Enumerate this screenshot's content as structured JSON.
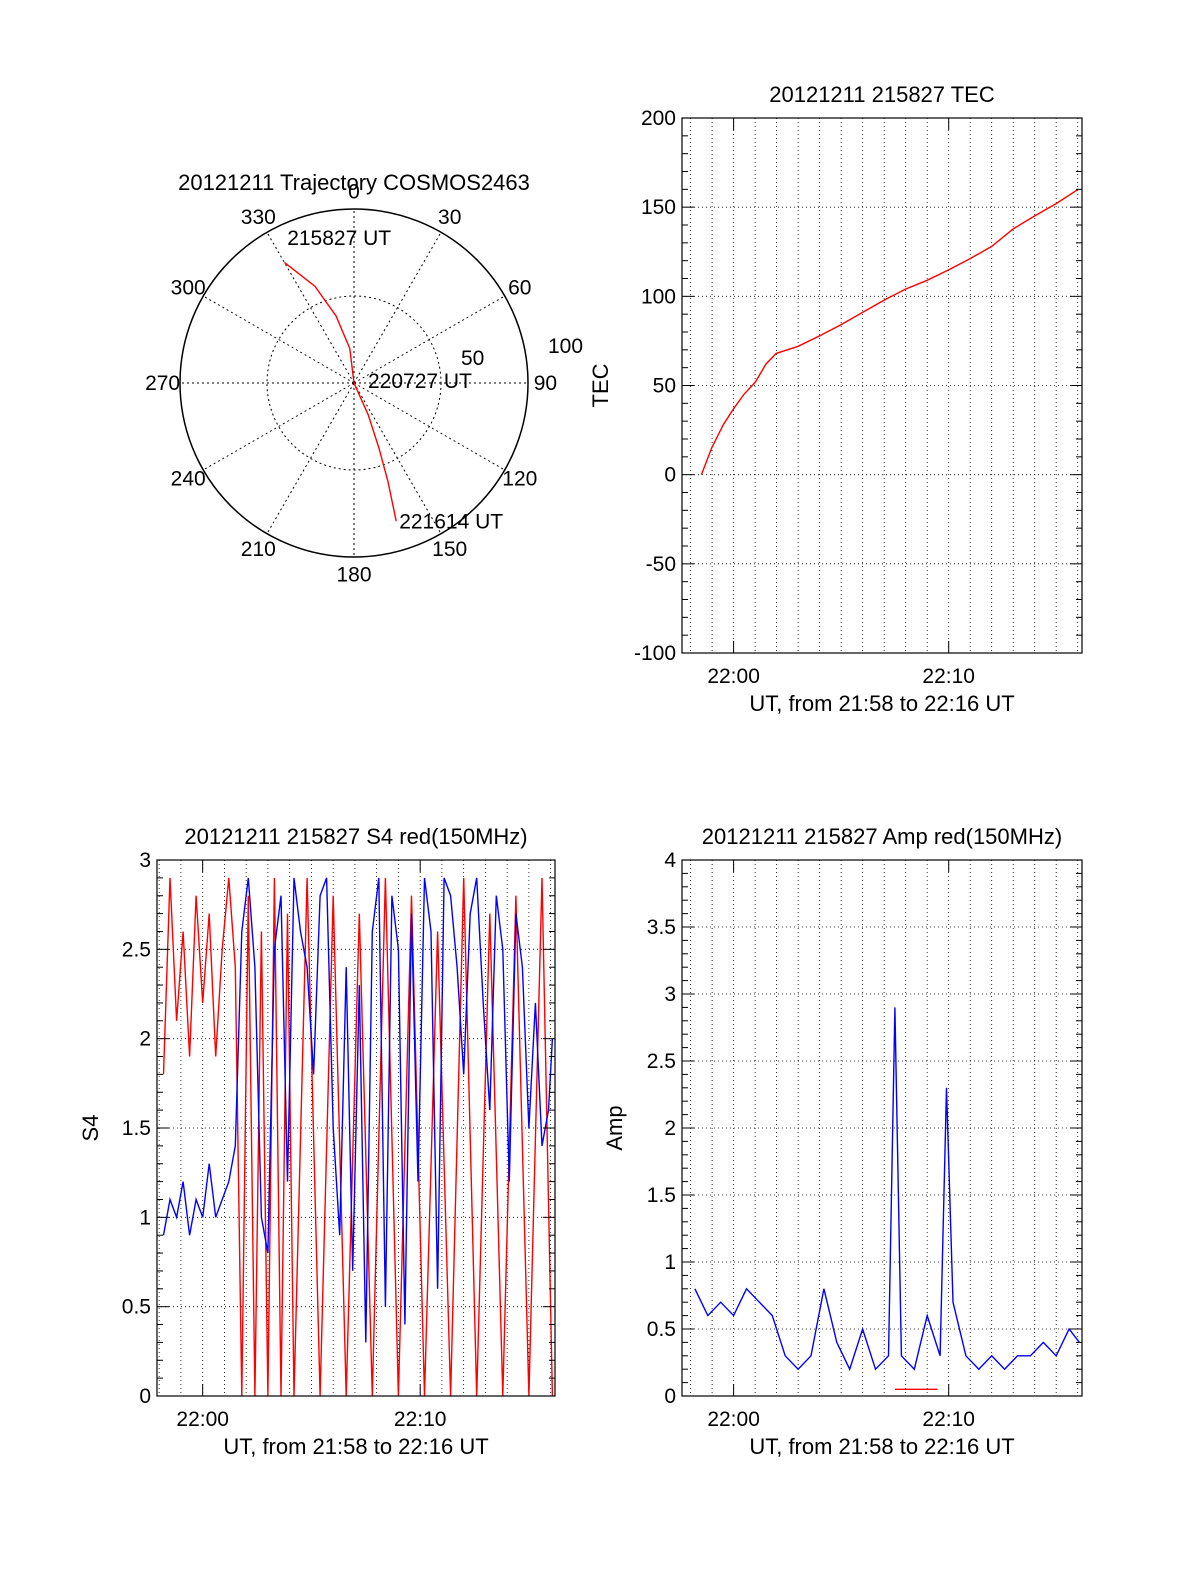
{
  "chart_data": [
    {
      "type": "polar",
      "title": "20121211 Trajectory COSMOS2463",
      "angle_ticks": [
        "0",
        "30",
        "60",
        "90",
        "120",
        "150",
        "180",
        "210",
        "240",
        "270",
        "300",
        "330"
      ],
      "radial_ticks": [
        "50",
        "100"
      ],
      "rmax": 100,
      "grid": true,
      "series": [
        {
          "color": "#ff0000",
          "points": [
            {
              "az": 330,
              "r": 80
            },
            {
              "az": 338,
              "r": 60
            },
            {
              "az": 345,
              "r": 40
            },
            {
              "az": 353,
              "r": 20
            },
            {
              "az": 150,
              "r": 0
            },
            {
              "az": 156,
              "r": 20
            },
            {
              "az": 159,
              "r": 40
            },
            {
              "az": 161,
              "r": 60
            },
            {
              "az": 163,
              "r": 83
            }
          ]
        }
      ],
      "annotations": [
        {
          "text": "215827 UT",
          "az": 335,
          "r": 80
        },
        {
          "text": "220727 UT",
          "az": 90,
          "r": 5
        },
        {
          "text": "221614 UT",
          "az": 163,
          "r": 85
        }
      ]
    },
    {
      "type": "line",
      "title": "20121211 215827 TEC",
      "ylabel": "TEC",
      "xlabel": "UT, from 21:58 to 22:16 UT",
      "xlim": [
        21.96,
        22.27
      ],
      "ylim": [
        -100,
        200
      ],
      "yticks": [
        -100,
        -50,
        0,
        50,
        100,
        150,
        200
      ],
      "xticks": [
        {
          "value": 22.0,
          "label": "22:00"
        },
        {
          "value": 22.1667,
          "label": "22:10"
        }
      ],
      "grid": true,
      "series": [
        {
          "color": "#ff0000",
          "x": [
            21.975,
            21.983,
            21.992,
            22.0,
            22.008,
            22.017,
            22.025,
            22.033,
            22.05,
            22.067,
            22.083,
            22.1,
            22.117,
            22.133,
            22.15,
            22.167,
            22.183,
            22.2,
            22.217,
            22.233,
            22.25,
            22.267
          ],
          "values": [
            0,
            15,
            28,
            37,
            45,
            52,
            62,
            68,
            72,
            78,
            84,
            91,
            98,
            104,
            109,
            115,
            121,
            128,
            138,
            145,
            152,
            160
          ]
        }
      ]
    },
    {
      "type": "line",
      "title": "20121211 215827 S4 red(150MHz)",
      "ylabel": "S4",
      "xlabel": "UT, from 21:58 to 22:16 UT",
      "xlim": [
        21.965,
        22.27
      ],
      "ylim": [
        0,
        3
      ],
      "yticks": [
        0,
        0.5,
        1,
        1.5,
        2,
        2.5,
        3
      ],
      "xticks": [
        {
          "value": 22.0,
          "label": "22:00"
        },
        {
          "value": 22.1667,
          "label": "22:10"
        }
      ],
      "grid": true,
      "series": [
        {
          "color": "#ff0000",
          "x": [
            21.97,
            21.975,
            21.98,
            21.985,
            21.99,
            21.995,
            22.0,
            22.005,
            22.01,
            22.015,
            22.02,
            22.025,
            22.03,
            22.035,
            22.04,
            22.045,
            22.05,
            22.055,
            22.06,
            22.065,
            22.07,
            22.08,
            22.09,
            22.1,
            22.11,
            22.12,
            22.13,
            22.14,
            22.15,
            22.16,
            22.17,
            22.18,
            22.19,
            22.2,
            22.21,
            22.22,
            22.23,
            22.24,
            22.25,
            22.26,
            22.268
          ],
          "values": [
            1.8,
            2.9,
            2.1,
            2.6,
            1.9,
            2.8,
            2.2,
            2.7,
            1.9,
            2.5,
            2.9,
            2.4,
            0.0,
            2.8,
            0.0,
            2.6,
            0.0,
            2.9,
            0.0,
            2.7,
            0.0,
            2.9,
            0.0,
            2.8,
            0.0,
            2.7,
            0.0,
            2.9,
            0.0,
            2.8,
            0.0,
            2.6,
            0.0,
            2.9,
            0.0,
            2.7,
            0.0,
            2.8,
            0.0,
            2.9,
            0.0
          ]
        },
        {
          "color": "#0000ff",
          "x": [
            21.97,
            21.975,
            21.98,
            21.985,
            21.99,
            21.995,
            22.0,
            22.005,
            22.01,
            22.015,
            22.02,
            22.025,
            22.03,
            22.035,
            22.04,
            22.045,
            22.05,
            22.055,
            22.06,
            22.065,
            22.07,
            22.075,
            22.08,
            22.085,
            22.09,
            22.095,
            22.1,
            22.105,
            22.11,
            22.115,
            22.12,
            22.125,
            22.13,
            22.135,
            22.14,
            22.145,
            22.15,
            22.155,
            22.16,
            22.165,
            22.17,
            22.175,
            22.18,
            22.185,
            22.19,
            22.195,
            22.2,
            22.205,
            22.21,
            22.215,
            22.22,
            22.225,
            22.23,
            22.235,
            22.24,
            22.245,
            22.25,
            22.255,
            22.26,
            22.265,
            22.268
          ],
          "values": [
            0.9,
            1.1,
            1.0,
            1.2,
            0.9,
            1.1,
            1.0,
            1.3,
            1.0,
            1.1,
            1.2,
            1.4,
            2.6,
            2.9,
            2.4,
            1.0,
            0.8,
            2.5,
            2.8,
            1.2,
            2.9,
            2.6,
            2.4,
            1.8,
            2.8,
            2.9,
            1.5,
            0.9,
            2.4,
            0.7,
            2.3,
            0.3,
            2.6,
            2.9,
            0.5,
            2.8,
            2.5,
            0.4,
            2.7,
            1.2,
            2.9,
            2.6,
            0.6,
            2.9,
            2.8,
            2.4,
            1.8,
            2.7,
            2.9,
            2.2,
            1.6,
            2.8,
            2.5,
            1.2,
            2.7,
            2.4,
            1.5,
            2.2,
            1.4,
            1.6,
            2.0
          ]
        }
      ]
    },
    {
      "type": "line",
      "title": "20121211 215827 Amp red(150MHz)",
      "ylabel": "Amp",
      "xlabel": "UT, from 21:58 to 22:16 UT",
      "xlim": [
        21.96,
        22.27
      ],
      "ylim": [
        0,
        4
      ],
      "yticks": [
        0,
        0.5,
        1,
        1.5,
        2,
        2.5,
        3,
        3.5,
        4
      ],
      "xticks": [
        {
          "value": 22.0,
          "label": "22:00"
        },
        {
          "value": 22.1667,
          "label": "22:10"
        }
      ],
      "grid": true,
      "series": [
        {
          "color": "#0000ff",
          "x": [
            21.97,
            21.98,
            21.99,
            22.0,
            22.01,
            22.02,
            22.03,
            22.04,
            22.05,
            22.06,
            22.07,
            22.08,
            22.09,
            22.1,
            22.11,
            22.12,
            22.125,
            22.13,
            22.14,
            22.15,
            22.16,
            22.165,
            22.17,
            22.18,
            22.19,
            22.2,
            22.21,
            22.22,
            22.23,
            22.24,
            22.25,
            22.26,
            22.268
          ],
          "values": [
            0.8,
            0.6,
            0.7,
            0.6,
            0.8,
            0.7,
            0.6,
            0.3,
            0.2,
            0.3,
            0.8,
            0.4,
            0.2,
            0.5,
            0.2,
            0.3,
            2.9,
            0.3,
            0.2,
            0.6,
            0.3,
            2.3,
            0.7,
            0.3,
            0.2,
            0.3,
            0.2,
            0.3,
            0.3,
            0.4,
            0.3,
            0.5,
            0.4
          ]
        },
        {
          "color": "#ff0000",
          "x": [
            22.125,
            22.158
          ],
          "values": [
            0.05,
            0.05
          ]
        }
      ]
    }
  ]
}
